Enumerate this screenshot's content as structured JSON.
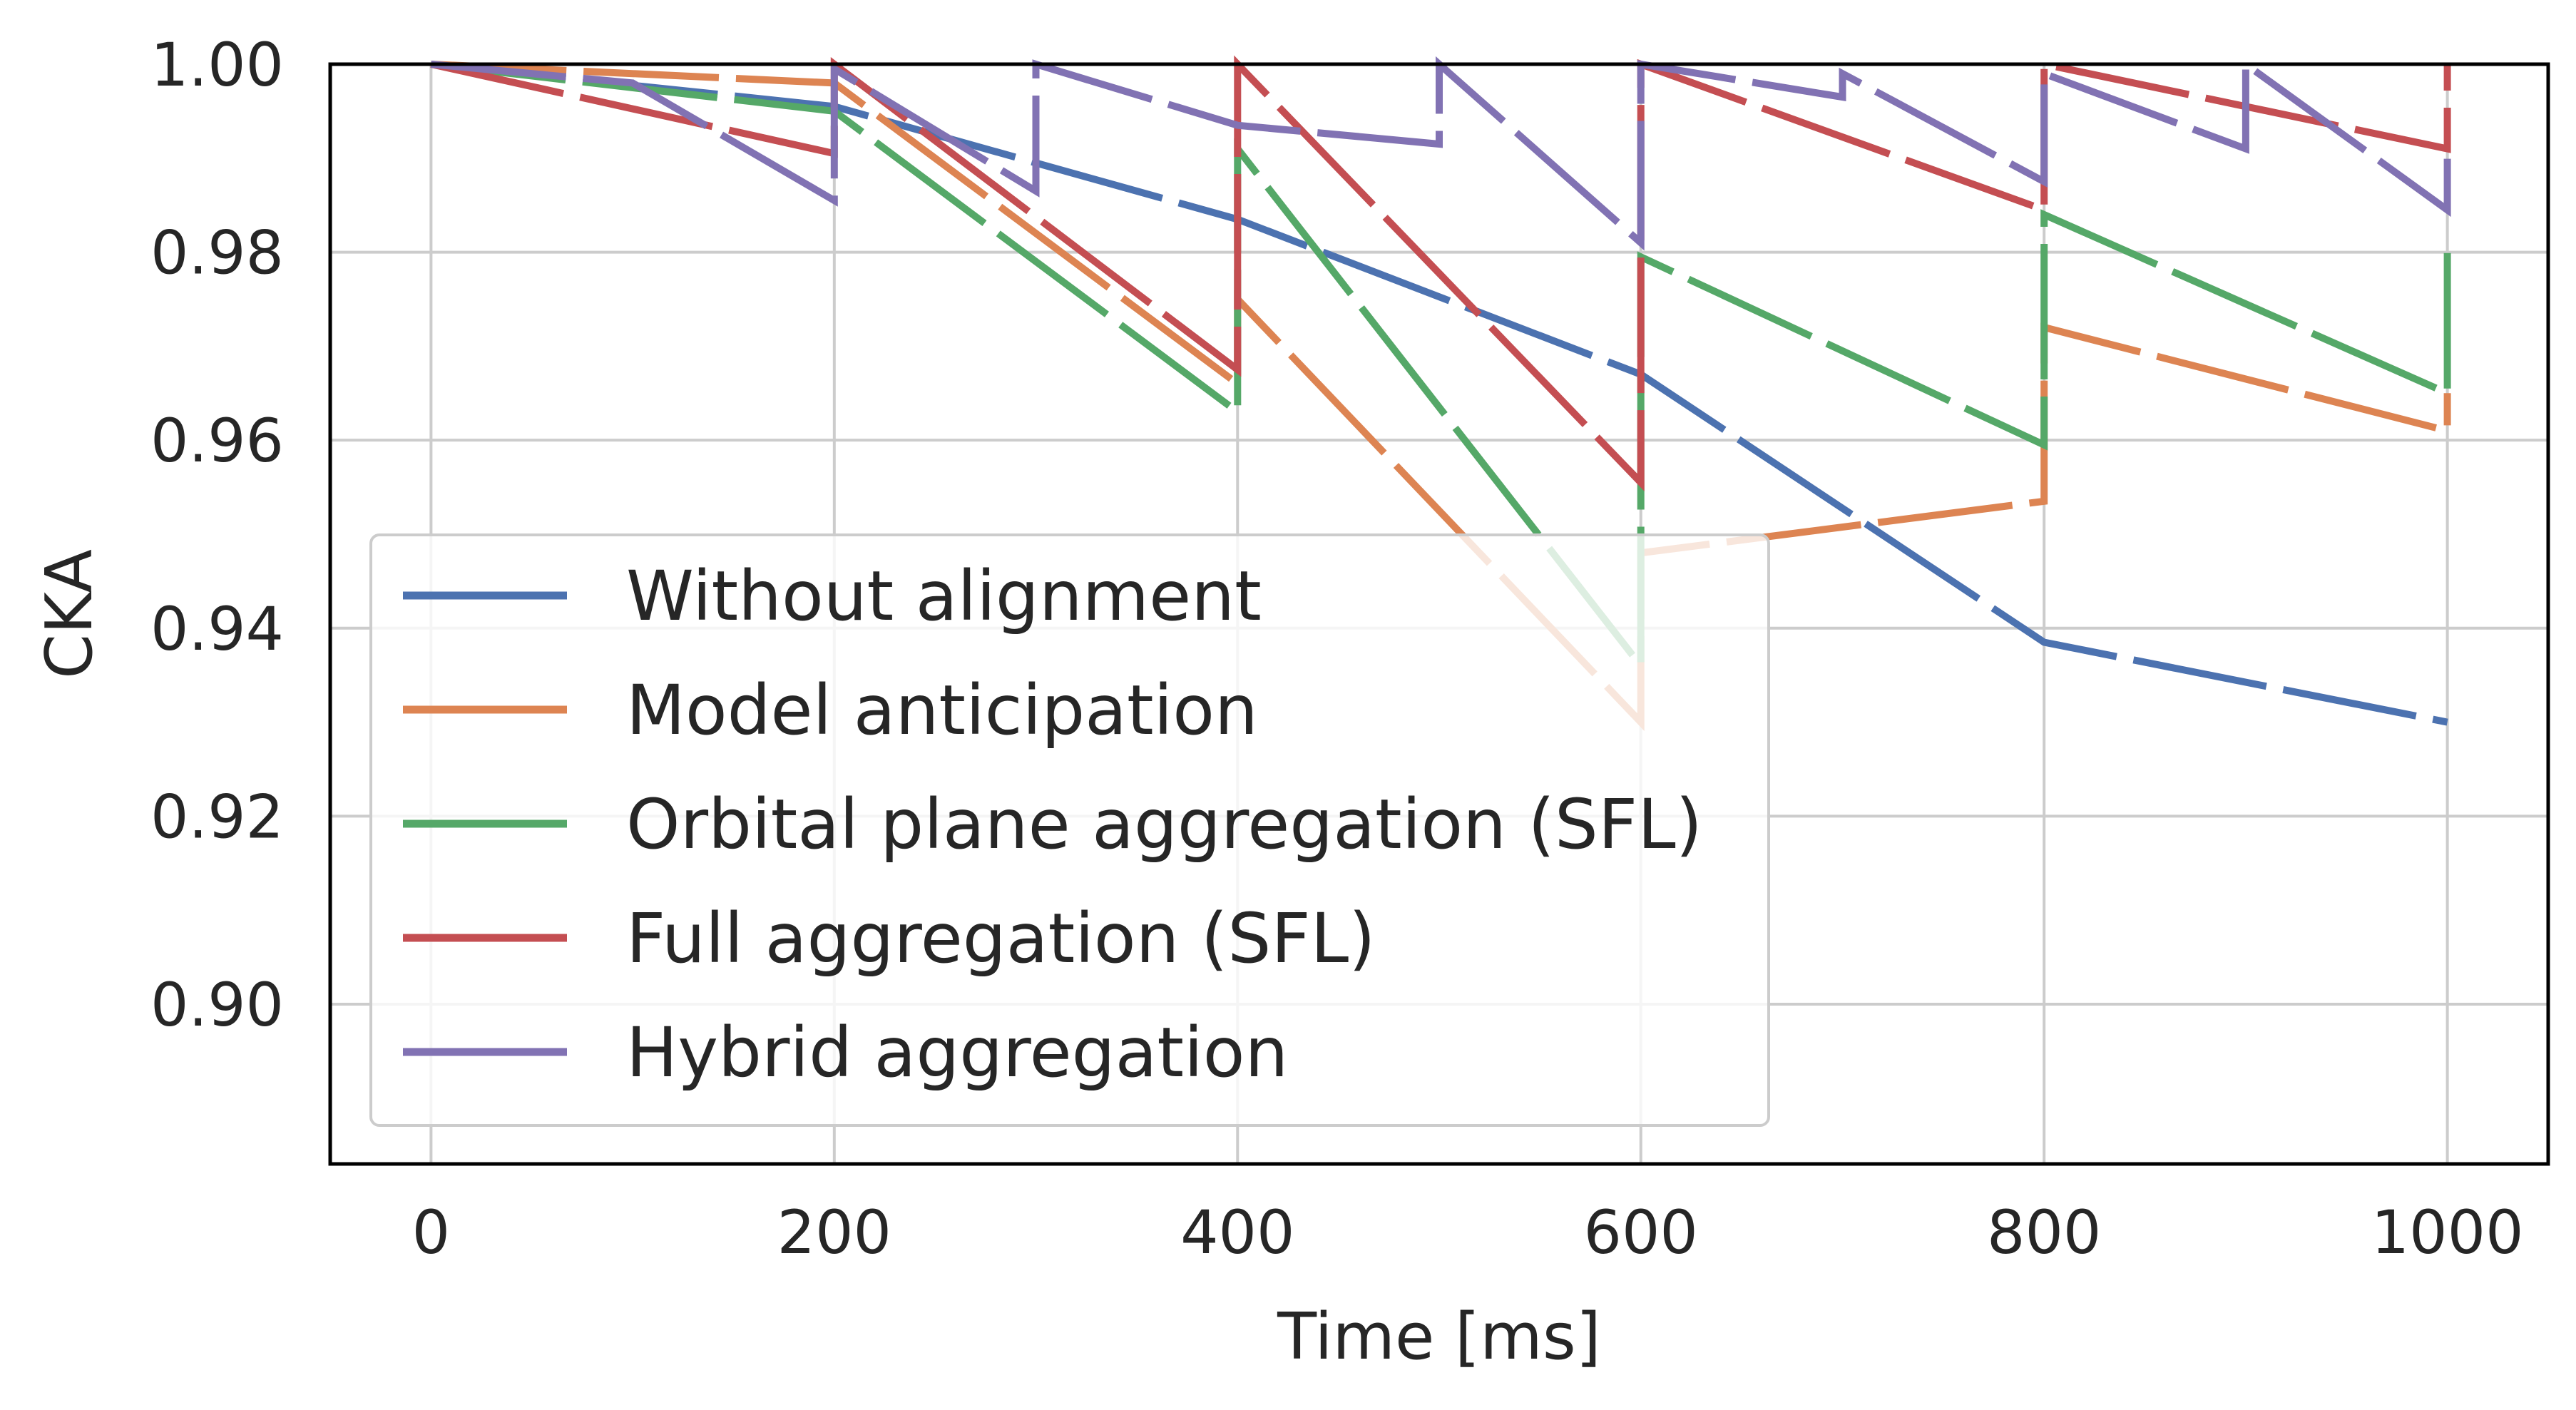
{
  "chart_data": {
    "type": "line",
    "xlabel": "Time [ms]",
    "ylabel": "CKA",
    "xlim": [
      -50,
      1050
    ],
    "ylim": [
      0.883,
      1.0
    ],
    "xticks": [
      0,
      200,
      400,
      600,
      800,
      1000
    ],
    "xtick_labels": [
      "0",
      "200",
      "400",
      "600",
      "800",
      "1000"
    ],
    "yticks": [
      0.9,
      0.92,
      0.94,
      0.96,
      0.98,
      1.0
    ],
    "ytick_labels": [
      "0.90",
      "0.92",
      "0.94",
      "0.96",
      "0.98",
      "1.00"
    ],
    "grid": true,
    "legend_position": "lower-left",
    "series": [
      {
        "name": "Without alignment",
        "color": "#4c72b0",
        "points": [
          [
            0,
            1.0
          ],
          [
            200,
            0.9955
          ],
          [
            400,
            0.9835
          ],
          [
            600,
            0.967
          ],
          [
            800,
            0.9385
          ],
          [
            1000,
            0.93
          ]
        ]
      },
      {
        "name": "Model anticipation",
        "color": "#dd8452",
        "points": [
          [
            0,
            1.0
          ],
          [
            200,
            0.998
          ],
          [
            400,
            0.966
          ],
          [
            400,
            0.975
          ],
          [
            600,
            0.93
          ],
          [
            600,
            0.948
          ],
          [
            800,
            0.9535
          ],
          [
            800,
            0.972
          ],
          [
            1000,
            0.961
          ],
          [
            1000,
            0.965
          ]
        ]
      },
      {
        "name": "Orbital plane aggregation (SFL)",
        "color": "#55a868",
        "points": [
          [
            0,
            1.0
          ],
          [
            200,
            0.995
          ],
          [
            400,
            0.963
          ],
          [
            400,
            0.991
          ],
          [
            600,
            0.936
          ],
          [
            600,
            0.9795
          ],
          [
            800,
            0.9595
          ],
          [
            800,
            0.984
          ],
          [
            1000,
            0.965
          ],
          [
            1000,
            0.98
          ]
        ]
      },
      {
        "name": "Full aggregation (SFL)",
        "color": "#c44e52",
        "points": [
          [
            0,
            1.0
          ],
          [
            200,
            0.9905
          ],
          [
            200,
            1.0
          ],
          [
            400,
            0.9675
          ],
          [
            400,
            1.0
          ],
          [
            600,
            0.9555
          ],
          [
            600,
            1.0
          ],
          [
            800,
            0.9845
          ],
          [
            800,
            1.0
          ],
          [
            1000,
            0.991
          ],
          [
            1000,
            1.0
          ]
        ]
      },
      {
        "name": "Hybrid aggregation",
        "color": "#8172b3",
        "points": [
          [
            0,
            1.0
          ],
          [
            100,
            0.998
          ],
          [
            200,
            0.9855
          ],
          [
            200,
            0.9995
          ],
          [
            300,
            0.9865
          ],
          [
            300,
            1.0
          ],
          [
            400,
            0.9935
          ],
          [
            500,
            0.9915
          ],
          [
            500,
            1.0
          ],
          [
            600,
            0.981
          ],
          [
            600,
            1.0
          ],
          [
            700,
            0.9965
          ],
          [
            700,
            0.999
          ],
          [
            800,
            0.9875
          ],
          [
            800,
            0.999
          ],
          [
            900,
            0.991
          ],
          [
            900,
            1.0
          ],
          [
            1000,
            0.9845
          ],
          [
            1000,
            0.99
          ]
        ]
      }
    ]
  }
}
